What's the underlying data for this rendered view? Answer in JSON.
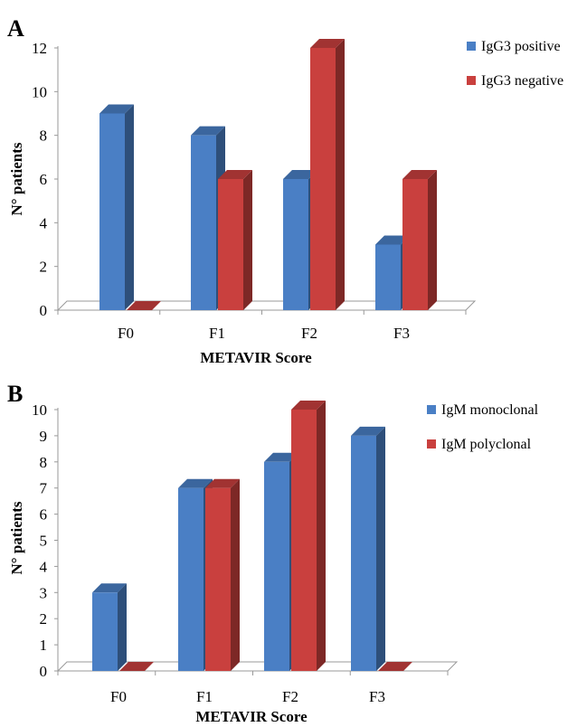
{
  "chart_data": [
    {
      "panel": "A",
      "type": "bar",
      "categories": [
        "F0",
        "F1",
        "F2",
        "F3"
      ],
      "series": [
        {
          "name": "IgG3 positive",
          "values": [
            9,
            8,
            6,
            3
          ]
        },
        {
          "name": "IgG3 negative",
          "values": [
            0,
            6,
            12,
            6
          ]
        }
      ],
      "xlabel": "METAVIR Score",
      "ylabel": "N° patients",
      "ylim": [
        0,
        12
      ],
      "yticks": [
        "0",
        "2",
        "4",
        "6",
        "8",
        "10",
        "12"
      ],
      "grid": false,
      "legend": "top-right",
      "colors": [
        "#4a7fc5",
        "#c9403e"
      ]
    },
    {
      "panel": "B",
      "type": "bar",
      "categories": [
        "F0",
        "F1",
        "F2",
        "F3"
      ],
      "series": [
        {
          "name": "IgM monoclonal",
          "values": [
            3,
            7,
            8,
            9
          ]
        },
        {
          "name": "IgM polyclonal",
          "values": [
            0,
            7,
            10,
            0
          ]
        }
      ],
      "xlabel": "METAVIR Score",
      "ylabel": "N° patients",
      "ylim": [
        0,
        10
      ],
      "yticks": [
        "0",
        "1",
        "2",
        "3",
        "4",
        "5",
        "6",
        "7",
        "8",
        "9",
        "10"
      ],
      "grid": false,
      "legend": "top-right",
      "colors": [
        "#4a7fc5",
        "#c9403e"
      ]
    }
  ]
}
